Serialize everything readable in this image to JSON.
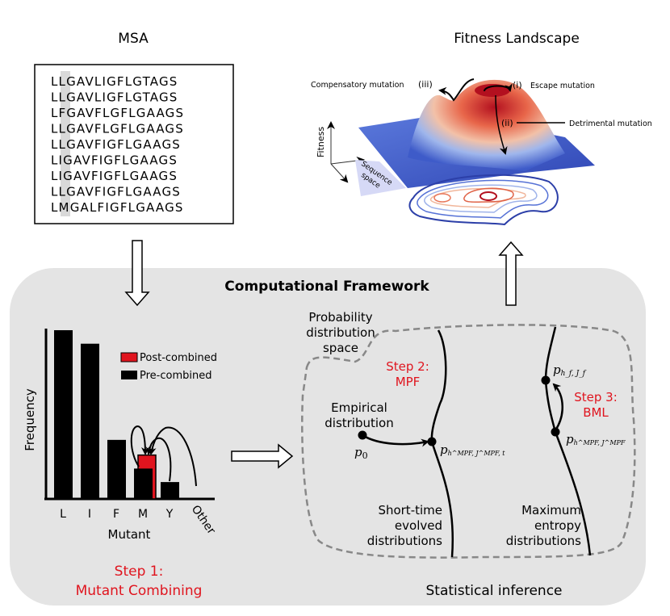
{
  "msa": {
    "title": "MSA",
    "rows": [
      "LLGAVLIGFLGTAGS",
      "LLGAVLIGFLGTAGS",
      "LFGAVFLGFLGAAGS",
      "LLGAVFLGFLGAAGS",
      "LLGAVFIGFLGAAGS",
      "LIGAVFIGFLGAAGS",
      "LIGAVFIGFLGAAGS",
      "LLGAVFIGFLGAAGS",
      "LMGALFIGFLGAAGS"
    ],
    "highlight_color": "#d9d9d9"
  },
  "landscape": {
    "title": "Fitness Landscape",
    "compensatory": "Compensatory mutation",
    "iii": "(iii)",
    "i": "(i)",
    "escape": "Escape mutation",
    "ii": "(ii)",
    "detrimental": "Detrimental mutation",
    "fitness_axis": "Fitness",
    "sequence_axis_1": "Sequence",
    "sequence_axis_2": "space"
  },
  "framework": {
    "title": "Computational Framework",
    "panel_color": "#e4e4e4",
    "accent_color": "#e0141e",
    "step1": {
      "line1": "Step 1:",
      "line2": "Mutant Combining"
    },
    "chart_data": {
      "type": "bar",
      "categories": [
        "L",
        "I",
        "F",
        "M",
        "Y",
        "Other"
      ],
      "series": [
        {
          "name": "Pre-combined",
          "values": [
            100,
            92,
            35,
            18,
            10,
            0
          ]
        },
        {
          "name": "Post-combined",
          "values": [
            null,
            null,
            null,
            26,
            null,
            null
          ]
        }
      ],
      "xlabel": "Mutant",
      "ylabel": "Frequency",
      "legend_position": "top-right"
    },
    "space_label": [
      "Probability",
      "distribution",
      "space"
    ],
    "step2": {
      "line1": "Step 2:",
      "line2": "MPF"
    },
    "step3": {
      "line1": "Step 3:",
      "line2": "BML"
    },
    "empirical": [
      "Empirical",
      "distribution"
    ],
    "p0": "p",
    "p0_sub": "0",
    "p_mpf_t": "p",
    "p_mpf_t_sub": "h^MPF, J^MPF, t",
    "p_f": "p",
    "p_f_sub": "h_f, J_f",
    "p_mpf": "p",
    "p_mpf_sub": "h^MPF, J^MPF",
    "short_time": [
      "Short-time",
      "evolved",
      "distributions"
    ],
    "max_entropy": [
      "Maximum",
      "entropy",
      "distributions"
    ],
    "inference": "Statistical inference"
  }
}
